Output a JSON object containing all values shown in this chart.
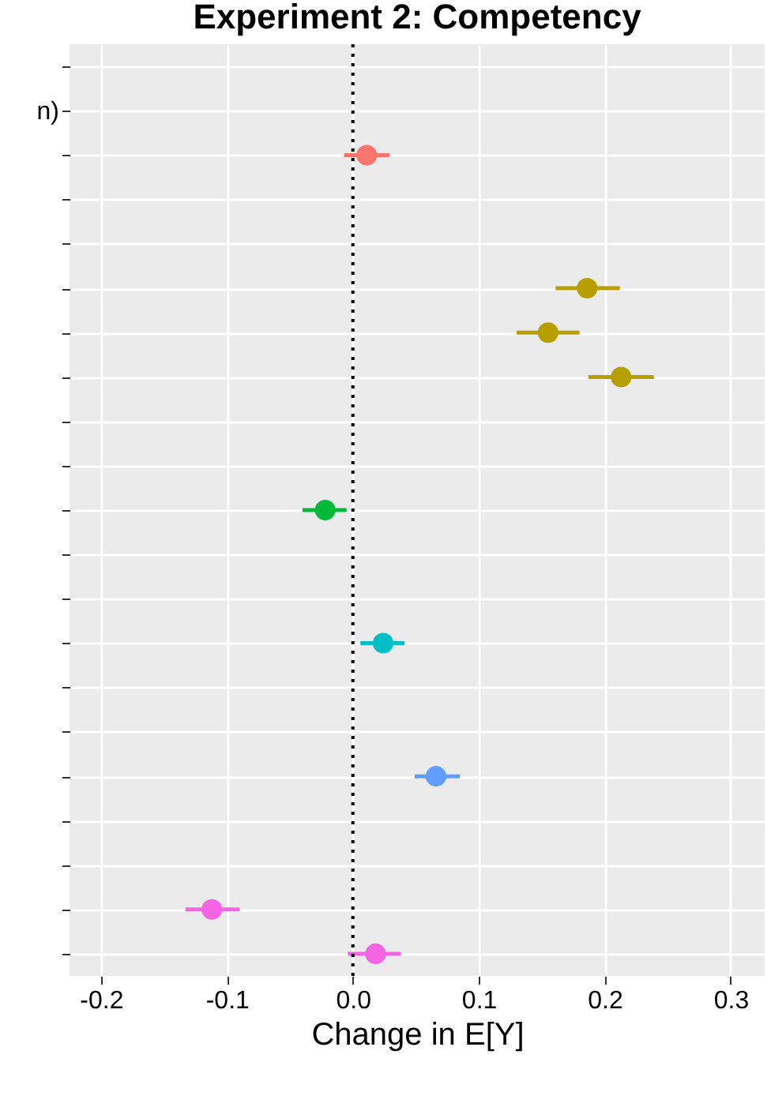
{
  "chart_data": {
    "type": "scatter",
    "title": "Experiment 2: Competency",
    "xlabel": "Change in E[Y]",
    "categories": [
      null,
      "n)",
      null,
      null,
      null,
      null,
      null,
      null,
      null,
      null,
      null,
      null,
      null,
      null,
      null,
      null,
      null,
      null,
      null,
      null,
      null
    ],
    "series": [
      {
        "color": "#f8766d",
        "values": [
          null,
          null,
          0.011,
          null,
          null,
          null,
          null,
          null,
          null,
          null,
          null,
          null,
          null,
          null,
          null,
          null,
          null,
          null,
          null,
          null,
          null
        ],
        "errors": [
          null,
          null,
          [
            -0.007,
            0.029
          ],
          null,
          null,
          null,
          null,
          null,
          null,
          null,
          null,
          null,
          null,
          null,
          null,
          null,
          null,
          null,
          null,
          null,
          null
        ]
      },
      {
        "color": "#b79f00",
        "values": [
          null,
          null,
          null,
          null,
          null,
          0.186,
          0.155,
          0.213,
          null,
          null,
          null,
          null,
          null,
          null,
          null,
          null,
          null,
          null,
          null,
          null,
          null
        ],
        "errors": [
          null,
          null,
          null,
          null,
          null,
          [
            0.161,
            0.212
          ],
          [
            0.13,
            0.18
          ],
          [
            0.187,
            0.239
          ],
          null,
          null,
          null,
          null,
          null,
          null,
          null,
          null,
          null,
          null,
          null,
          null,
          null
        ]
      },
      {
        "color": "#00ba38",
        "values": [
          null,
          null,
          null,
          null,
          null,
          null,
          null,
          null,
          null,
          null,
          -0.022,
          null,
          null,
          null,
          null,
          null,
          null,
          null,
          null,
          null,
          null
        ],
        "errors": [
          null,
          null,
          null,
          null,
          null,
          null,
          null,
          null,
          null,
          null,
          [
            -0.04,
            -0.005
          ],
          null,
          null,
          null,
          null,
          null,
          null,
          null,
          null,
          null,
          null
        ]
      },
      {
        "color": "#00bfc4",
        "values": [
          null,
          null,
          null,
          null,
          null,
          null,
          null,
          null,
          null,
          null,
          null,
          null,
          null,
          0.024,
          null,
          null,
          null,
          null,
          null,
          null,
          null
        ],
        "errors": [
          null,
          null,
          null,
          null,
          null,
          null,
          null,
          null,
          null,
          null,
          null,
          null,
          null,
          [
            0.006,
            0.041
          ],
          null,
          null,
          null,
          null,
          null,
          null,
          null
        ]
      },
      {
        "color": "#619cff",
        "values": [
          null,
          null,
          null,
          null,
          null,
          null,
          null,
          null,
          null,
          null,
          null,
          null,
          null,
          null,
          null,
          null,
          0.066,
          null,
          null,
          null,
          null
        ],
        "errors": [
          null,
          null,
          null,
          null,
          null,
          null,
          null,
          null,
          null,
          null,
          null,
          null,
          null,
          null,
          null,
          null,
          [
            0.049,
            0.085
          ],
          null,
          null,
          null,
          null
        ]
      },
      {
        "color": "#f564e3",
        "values": [
          null,
          null,
          null,
          null,
          null,
          null,
          null,
          null,
          null,
          null,
          null,
          null,
          null,
          null,
          null,
          null,
          null,
          null,
          null,
          -0.112,
          0.018
        ],
        "errors": [
          null,
          null,
          null,
          null,
          null,
          null,
          null,
          null,
          null,
          null,
          null,
          null,
          null,
          null,
          null,
          null,
          null,
          null,
          null,
          [
            -0.133,
            -0.09
          ],
          [
            -0.004,
            0.038
          ]
        ]
      }
    ],
    "orientation": "horizontal",
    "xlim": [
      -0.225,
      0.327
    ],
    "xticks": [
      -0.2,
      -0.1,
      {
        "value": 0,
        "label": "0.0"
      },
      0.1,
      0.2,
      0.3
    ],
    "ref_lines": [
      {
        "axis": "x",
        "value": 0,
        "color": "#000000",
        "line_style": "dotted"
      }
    ],
    "grid": true,
    "marker": "circle"
  }
}
